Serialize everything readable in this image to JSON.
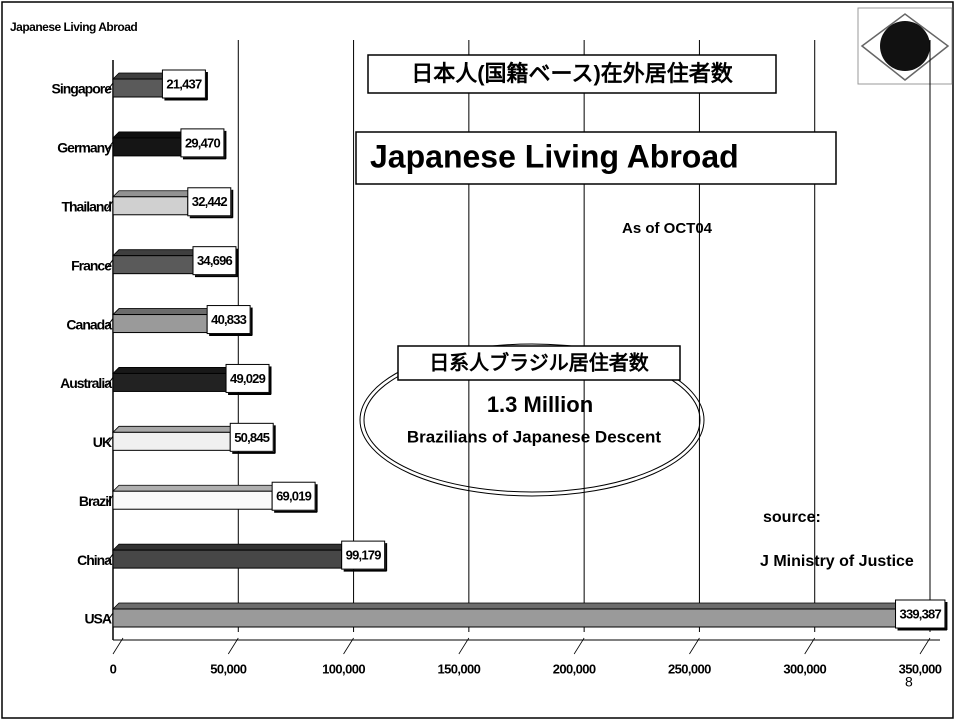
{
  "chart_data": {
    "type": "bar",
    "orientation": "horizontal",
    "corner_label": "Japanese Living Abroad",
    "heading_jp": "日本人(国籍ベース)在外居住者数",
    "title": "Japanese Living Abroad",
    "date_note": "As of OCT04",
    "callout": {
      "jp": "日系人ブラジル居住者数",
      "main": "1.3 Million",
      "sub": "Brazilians of Japanese Descent"
    },
    "source": [
      "source:",
      "J Ministry of Justice"
    ],
    "page_number": "8",
    "categories": [
      "Singapore",
      "Germany",
      "Thailand",
      "France",
      "Canada",
      "Australia",
      "UK",
      "Brazil",
      "China",
      "USA"
    ],
    "values": [
      21437,
      29470,
      32442,
      34696,
      40833,
      49029,
      50845,
      69019,
      99179,
      339387
    ],
    "value_labels": [
      "21,437",
      "29,470",
      "32,442",
      "34,696",
      "40,833",
      "49,029",
      "50,845",
      "69,019",
      "99,179",
      "339,387"
    ],
    "colors": [
      "#5a5a5a",
      "#151515",
      "#d0d0d0",
      "#5a5a5a",
      "#9a9a9a",
      "#222222",
      "#f0f0f0",
      "#fafafa",
      "#474747",
      "#9a9a9a"
    ],
    "xlim": [
      0,
      350000
    ],
    "xticks": [
      0,
      {
        "value": 50000,
        "label": "50,000"
      },
      {
        "value": 100000,
        "label": "100,000"
      },
      {
        "value": 150000,
        "label": "150,000"
      },
      {
        "value": 200000,
        "label": "200,000"
      },
      {
        "value": 250000,
        "label": "250,000"
      },
      {
        "value": 300000,
        "label": "300,000"
      },
      {
        "value": 350000,
        "label": "350,000"
      }
    ],
    "grid": true
  }
}
